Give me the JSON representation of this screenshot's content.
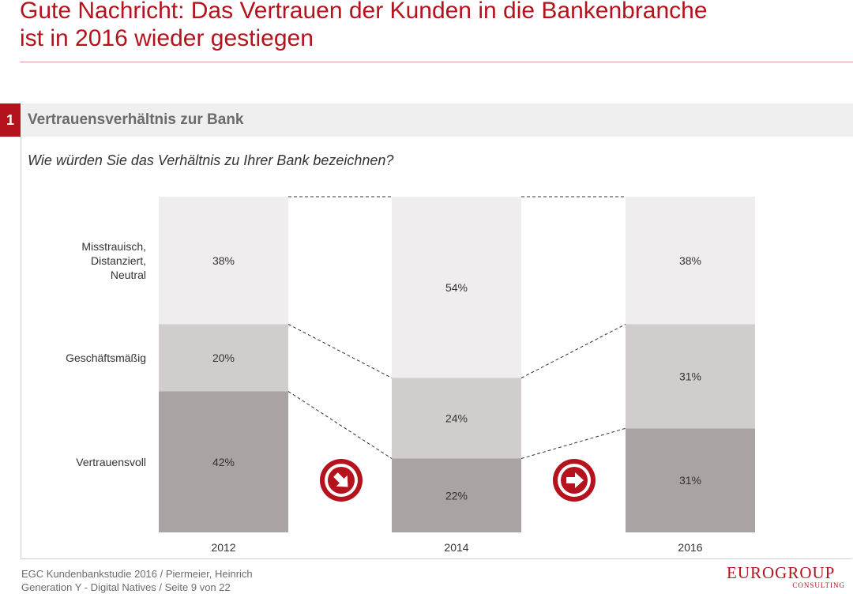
{
  "header": {
    "title_line1": "Gute Nachricht: Das Vertrauen der Kunden in die Bankenbranche",
    "title_line2": "ist in 2016 wieder gestiegen"
  },
  "section": {
    "number": "1",
    "label": "Vertrauensverhältnis zur Bank"
  },
  "question": "Wie würden Sie das Verhältnis zu Ihrer Bank bezeichnen?",
  "footer": {
    "line1": "EGC Kundenbankstudie 2016 / Piermeier, Heinrich",
    "line2": "Generation Y - Digital Natives / Seite 9 von 22"
  },
  "logo": {
    "main": "EUROGROUP",
    "sub": "CONSULTING"
  },
  "colors": {
    "brand_red": "#b4121d",
    "segment_bottom": "#a9a3a3",
    "segment_middle": "#d2cdcd",
    "segment_top": "#efeded"
  },
  "icons": [
    "arrow-down-right-icon",
    "arrow-right-icon"
  ],
  "chart_data": {
    "type": "bar",
    "stacked": true,
    "categories": [
      "2012",
      "2014",
      "2016"
    ],
    "series": [
      {
        "name": "Vertrauensvoll",
        "values": [
          42,
          22,
          31
        ],
        "labels": [
          "42%",
          "22%",
          "31%"
        ]
      },
      {
        "name": "Geschäftsmäßig",
        "values": [
          20,
          24,
          31
        ],
        "labels": [
          "20%",
          "24%",
          "31%"
        ]
      },
      {
        "name": "Misstrauisch,\nDistanziert,\nNeutral",
        "values": [
          38,
          54,
          38
        ],
        "labels": [
          "38%",
          "54%",
          "38%"
        ]
      }
    ],
    "ylim": [
      0,
      100
    ],
    "trend_icons": [
      "arrow-down-right-icon",
      "arrow-right-icon"
    ]
  }
}
